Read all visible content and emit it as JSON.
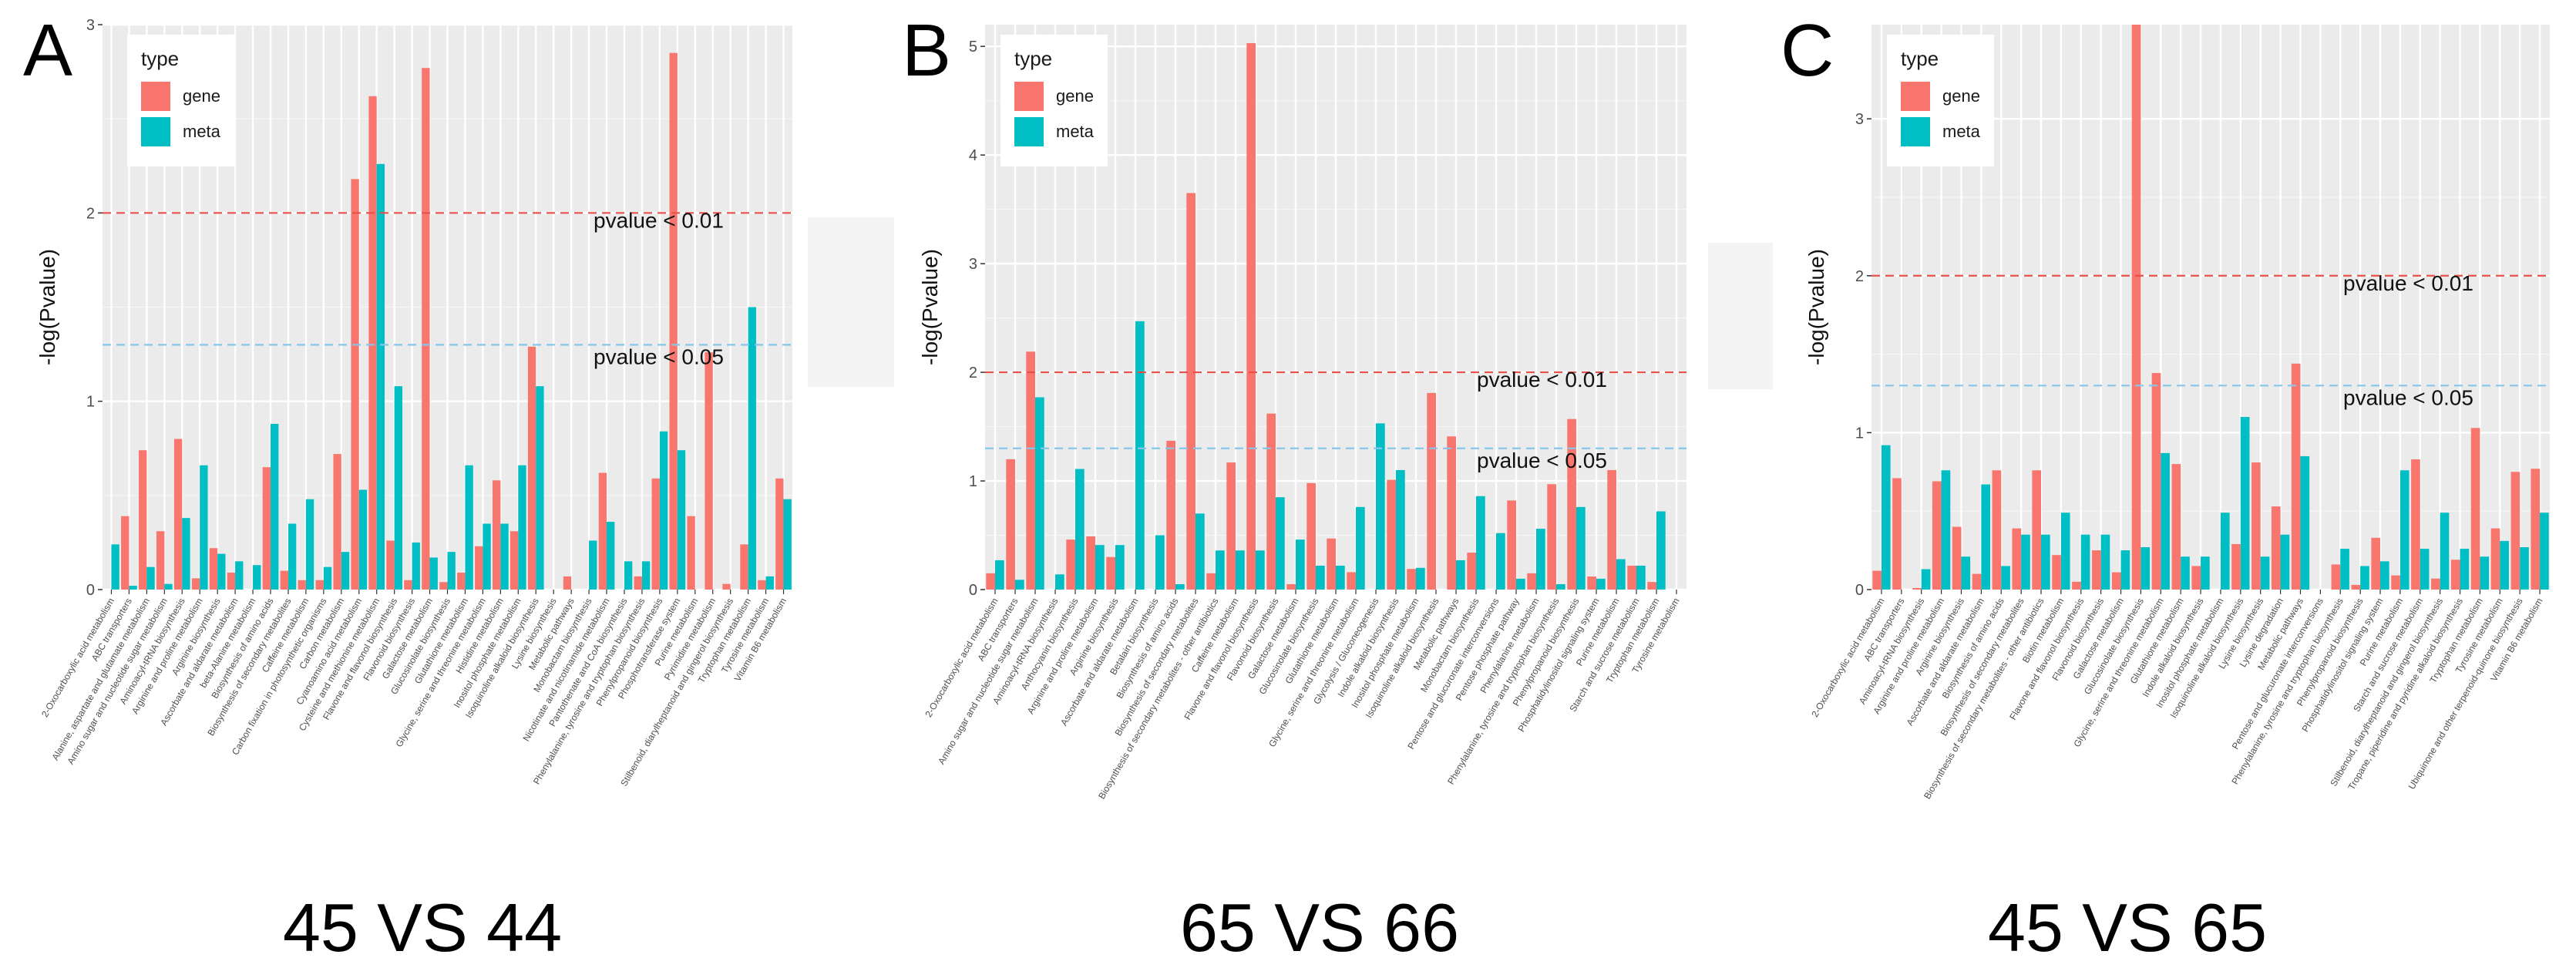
{
  "colors": {
    "gene": "#F8766D",
    "meta": "#00BFC4",
    "panel_bg": "#EBEBEB",
    "threshold_01": "#E8504A",
    "threshold_05": "#86C6EA"
  },
  "legend": {
    "title": "type",
    "gene_label": "gene",
    "meta_label": "meta"
  },
  "ylabel": "-log(Pvalue)",
  "threshold_labels": {
    "p01": "pvalue < 0.01",
    "p05": "pvalue < 0.05"
  },
  "chart_data": [
    {
      "type": "bar",
      "panel": "A",
      "comparison": "45 VS 44",
      "ylabel": "-log(Pvalue)",
      "ylim": [
        0,
        3
      ],
      "yticks": [
        0,
        1,
        2,
        3
      ],
      "thresholds": [
        2,
        1.3
      ],
      "categories": [
        "2-Oxocarboxylic acid metabolism",
        "ABC transporters",
        "Alanine, aspartate and glutamate metabolism",
        "Amino sugar and nucleotide sugar metabolism",
        "Aminoacyl-tRNA biosynthesis",
        "Arginine and proline metabolism",
        "Arginine biosynthesis",
        "Ascorbate and aldarate metabolism",
        "beta-Alanine metabolism",
        "Biosynthesis of amino acids",
        "Biosynthesis of secondary metabolites",
        "Caffeine metabolism",
        "Carbon fixation in photosynthetic organisms",
        "Carbon metabolism",
        "Cyanoamino acid metabolism",
        "Cysteine and methionine metabolism",
        "Flavone and flavonol biosynthesis",
        "Flavonoid biosynthesis",
        "Galactose metabolism",
        "Glucosinolate biosynthesis",
        "Glutathione metabolism",
        "Glycine, serine and threonine metabolism",
        "Histidine metabolism",
        "Inositol phosphate metabolism",
        "Isoquinoline alkaloid biosynthesis",
        "Lysine biosynthesis",
        "Metabolic pathways",
        "Monobactam biosynthesis",
        "Nicotinate and nicotinamide metabolism",
        "Pantothenate and CoA biosynthesis",
        "Phenylalanine, tyrosine and tryptophan biosynthesis",
        "Phenylpropanoid biosynthesis",
        "Phosphotransferase system",
        "Purine metabolism",
        "Pyrimidine metabolism",
        "Stilbenoid, diarylheptanoid and gingerol biosynthesis",
        "Tryptophan metabolism",
        "Tyrosine metabolism",
        "Vitamin B6 metabolism"
      ],
      "series": [
        {
          "name": "gene",
          "values": [
            0.0,
            0.39,
            0.74,
            0.31,
            0.8,
            0.06,
            0.22,
            0.09,
            0.0,
            0.65,
            0.1,
            0.05,
            0.05,
            0.72,
            2.18,
            2.62,
            0.26,
            0.05,
            2.77,
            0.04,
            0.09,
            0.23,
            0.58,
            0.31,
            1.29,
            0.0,
            0.07,
            0.0,
            0.62,
            0.0,
            0.07,
            0.59,
            2.85,
            0.39,
            1.26,
            0.03,
            0.24,
            0.05,
            0.59
          ]
        },
        {
          "name": "meta",
          "values": [
            0.24,
            0.02,
            0.12,
            0.03,
            0.38,
            0.66,
            0.19,
            0.15,
            0.13,
            0.88,
            0.35,
            0.48,
            0.12,
            0.2,
            0.53,
            2.26,
            1.08,
            0.25,
            0.17,
            0.2,
            0.66,
            0.35,
            0.35,
            0.66,
            1.08,
            0.0,
            0.0,
            0.26,
            0.36,
            0.15,
            0.15,
            0.84,
            0.74,
            0.0,
            0.0,
            0.0,
            1.5,
            0.07,
            0.48
          ]
        }
      ]
    },
    {
      "type": "bar",
      "panel": "B",
      "comparison": "65 VS 66",
      "ylabel": "-log(Pvalue)",
      "ylim": [
        0,
        5.2
      ],
      "yticks": [
        0,
        1,
        2,
        3,
        4,
        5
      ],
      "thresholds": [
        2,
        1.3
      ],
      "categories": [
        "2-Oxocarboxylic acid metabolism",
        "ABC transporters",
        "Amino sugar and nucleotide sugar metabolism",
        "Aminoacyl-tRNA biosynthesis",
        "Anthocyanin biosynthesis",
        "Arginine and proline metabolism",
        "Arginine biosynthesis",
        "Ascorbate and aldarate metabolism",
        "Betalain biosynthesis",
        "Biosynthesis of amino acids",
        "Biosynthesis of secondary metabolites",
        "Biosynthesis of secondary metabolites - other antibiotics",
        "Caffeine metabolism",
        "Flavone and flavonol biosynthesis",
        "Flavonoid biosynthesis",
        "Galactose metabolism",
        "Glucosinolate biosynthesis",
        "Glutathione metabolism",
        "Glycine, serine and threonine metabolism",
        "Glycolysis / Gluconeogenesis",
        "Indole alkaloid biosynthesis",
        "Inositol phosphate metabolism",
        "Isoquinoline alkaloid biosynthesis",
        "Metabolic pathways",
        "Monobactam biosynthesis",
        "Pentose and glucuronate interconversions",
        "Pentose phosphate pathway",
        "Phenylalanine metabolism",
        "Phenylalanine, tyrosine and tryptophan biosynthesis",
        "Phenylpropanoid biosynthesis",
        "Phosphatidylinositol signaling system",
        "Purine metabolism",
        "Starch and sucrose metabolism",
        "Tryptophan metabolism",
        "Tyrosine metabolism"
      ],
      "series": [
        {
          "name": "gene",
          "values": [
            0.15,
            1.2,
            2.19,
            0.0,
            0.46,
            0.49,
            0.3,
            0.0,
            0.0,
            1.37,
            3.65,
            0.15,
            1.17,
            5.03,
            1.62,
            0.05,
            0.98,
            0.47,
            0.16,
            0.0,
            1.01,
            0.19,
            1.81,
            1.41,
            0.34,
            0.0,
            0.82,
            0.15,
            0.97,
            1.57,
            0.12,
            1.1,
            0.22,
            0.07,
            0.0
          ]
        },
        {
          "name": "meta",
          "values": [
            0.27,
            0.09,
            1.77,
            0.14,
            1.11,
            0.41,
            0.41,
            2.47,
            0.5,
            0.05,
            0.7,
            0.36,
            0.36,
            0.36,
            0.85,
            0.46,
            0.22,
            0.22,
            0.76,
            1.53,
            1.1,
            0.2,
            0.0,
            0.27,
            0.86,
            0.52,
            0.1,
            0.56,
            0.05,
            0.76,
            0.1,
            0.28,
            0.22,
            0.72,
            0.0
          ]
        }
      ]
    },
    {
      "type": "bar",
      "panel": "C",
      "comparison": "45 VS 65",
      "ylabel": "-log(Pvalue)",
      "ylim": [
        0,
        3.6
      ],
      "yticks": [
        0,
        1,
        2,
        3
      ],
      "thresholds": [
        2,
        1.3
      ],
      "categories": [
        "2-Oxocarboxylic acid metabolism",
        "ABC transporters",
        "Aminoacyl-tRNA biosynthesis",
        "Arginine and proline metabolism",
        "Arginine biosynthesis",
        "Ascorbate and aldarate metabolism",
        "Biosynthesis of amino acids",
        "Biosynthesis of secondary metabolites",
        "Biosynthesis of secondary metabolites - other antibiotics",
        "Biotin metabolism",
        "Flavone and flavonol biosynthesis",
        "Flavonoid biosynthesis",
        "Galactose metabolism",
        "Glucosinolate biosynthesis",
        "Glycine, serine and threonine metabolism",
        "Glutathione metabolism",
        "Indole alkaloid biosynthesis",
        "Inositol phosphate metabolism",
        "Isoquinoline alkaloid biosynthesis",
        "Lysine biosynthesis",
        "Lysine degradation",
        "Metabolic pathways",
        "Pentose and glucuronate interconversions",
        "Phenylalanine, tyrosine and tryptophan biosynthesis",
        "Phenylpropanoid biosynthesis",
        "Phosphatidylinositol signaling system",
        "Purine metabolism",
        "Starch and sucrose metabolism",
        "Stilbenoid, diarylheptanoid and gingerol biosynthesis",
        "Tropane, piperidine and pyridine alkaloid biosynthesis",
        "Tryptophan metabolism",
        "Tyrosine metabolism",
        "Ubiquinone and other terpenoid-quinone biosynthesis",
        "Vitamin B6 metabolism"
      ],
      "series": [
        {
          "name": "gene",
          "values": [
            0.12,
            0.71,
            0.01,
            0.69,
            0.4,
            0.1,
            0.76,
            0.39,
            0.76,
            0.22,
            0.05,
            0.25,
            0.11,
            3.6,
            1.38,
            0.8,
            0.15,
            0.0,
            0.29,
            0.81,
            0.53,
            1.44,
            0.0,
            0.16,
            0.03,
            0.33,
            0.09,
            0.83,
            0.07,
            0.19,
            1.03,
            0.39,
            0.75,
            0.77
          ]
        },
        {
          "name": "meta",
          "values": [
            0.92,
            0.0,
            0.13,
            0.76,
            0.21,
            0.67,
            0.15,
            0.35,
            0.35,
            0.49,
            0.35,
            0.35,
            0.25,
            0.27,
            0.87,
            0.21,
            0.21,
            0.49,
            1.1,
            0.21,
            0.35,
            0.85,
            0.0,
            0.26,
            0.15,
            0.18,
            0.76,
            0.26,
            0.49,
            0.26,
            0.21,
            0.31,
            0.27,
            0.49
          ]
        }
      ]
    }
  ]
}
